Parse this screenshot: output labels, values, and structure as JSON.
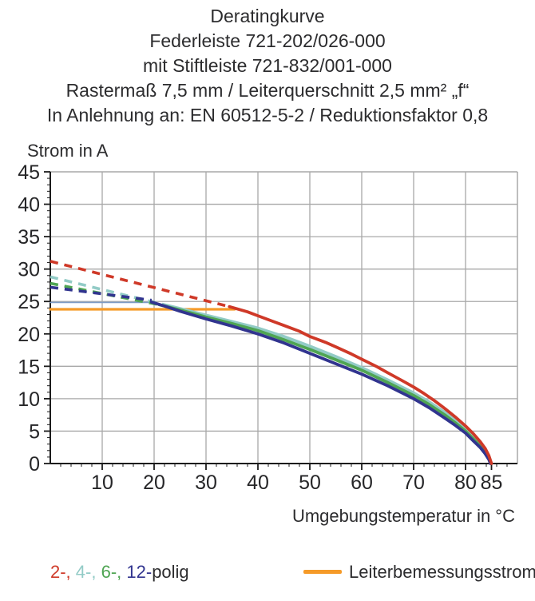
{
  "title_block": {
    "lines": [
      "Deratingkurve",
      "Federleiste 721-202/026-000",
      "mit Stiftleiste 721-832/001-000",
      "Rastermaß 7,5 mm / Leiterquerschnitt 2,5 mm² „f“",
      "In Anlehnung an: EN 60512-5-2 / Reduktionsfaktor 0,8"
    ]
  },
  "chart_data": {
    "type": "line",
    "title": "Deratingkurve",
    "ylabel": "Strom in A",
    "xlabel": "Umgebungstemperatur in °C",
    "xlim": [
      0,
      90
    ],
    "ylim": [
      0,
      45
    ],
    "xticks": [
      10,
      20,
      30,
      40,
      50,
      60,
      70,
      80,
      85
    ],
    "x_gridlines": [
      10,
      20,
      30,
      40,
      50,
      60,
      70,
      80
    ],
    "yticks": [
      0,
      5,
      10,
      15,
      20,
      25,
      30,
      35,
      40,
      45
    ],
    "grid": true,
    "legend_position": "bottom",
    "series": [
      {
        "name": "12-polig cap line",
        "color": "#7e9cc6",
        "style": "solid",
        "width": 1.6,
        "points": [
          [
            0,
            24.85
          ],
          [
            19.5,
            24.85
          ]
        ]
      },
      {
        "name": "Leiterbemessungsstrom",
        "color": "#f59a28",
        "style": "solid",
        "width": 3.2,
        "points": [
          [
            0,
            23.8
          ],
          [
            35.5,
            23.8
          ]
        ]
      },
      {
        "name": "4-polig (dashed)",
        "color": "#92cbc6",
        "style": "dashed",
        "width": 3.6,
        "points": [
          [
            0,
            28.8
          ],
          [
            22.5,
            24.4
          ]
        ]
      },
      {
        "name": "4-polig",
        "color": "#92cbc6",
        "style": "solid",
        "width": 3.8,
        "points": [
          [
            22.5,
            24.4
          ],
          [
            25,
            23.9
          ],
          [
            30,
            22.9
          ],
          [
            35,
            21.9
          ],
          [
            40,
            20.9
          ],
          [
            45,
            19.6
          ],
          [
            50,
            18.1
          ],
          [
            55,
            16.5
          ],
          [
            60,
            14.8
          ],
          [
            65,
            12.9
          ],
          [
            70,
            10.9
          ],
          [
            73,
            9.5
          ],
          [
            76,
            7.9
          ],
          [
            78,
            6.7
          ],
          [
            80,
            5.3
          ],
          [
            81.5,
            4.1
          ],
          [
            82.8,
            3.0
          ],
          [
            83.8,
            2.0
          ],
          [
            84.5,
            1.0
          ],
          [
            84.9,
            0
          ]
        ]
      },
      {
        "name": "6-polig (dashed)",
        "color": "#4fa553",
        "style": "dashed",
        "width": 3.6,
        "points": [
          [
            0,
            27.8
          ],
          [
            21,
            24.5
          ]
        ]
      },
      {
        "name": "6-polig",
        "color": "#4fa553",
        "style": "solid",
        "width": 3.8,
        "points": [
          [
            21,
            24.5
          ],
          [
            25,
            23.7
          ],
          [
            30,
            22.6
          ],
          [
            35,
            21.6
          ],
          [
            40,
            20.5
          ],
          [
            45,
            19.1
          ],
          [
            50,
            17.6
          ],
          [
            55,
            16.0
          ],
          [
            60,
            14.4
          ],
          [
            65,
            12.5
          ],
          [
            70,
            10.5
          ],
          [
            73,
            9.1
          ],
          [
            76,
            7.5
          ],
          [
            78,
            6.3
          ],
          [
            80,
            5.0
          ],
          [
            81.5,
            3.8
          ],
          [
            82.8,
            2.7
          ],
          [
            83.8,
            1.7
          ],
          [
            84.5,
            0.8
          ],
          [
            84.9,
            0
          ]
        ]
      },
      {
        "name": "12-polig (dashed)",
        "color": "#31348f",
        "style": "dashed",
        "width": 3.6,
        "points": [
          [
            0,
            27.2
          ],
          [
            19.5,
            25.2
          ]
        ]
      },
      {
        "name": "12-polig",
        "color": "#31348f",
        "style": "solid",
        "width": 3.8,
        "points": [
          [
            19.5,
            24.9
          ],
          [
            22,
            24.3
          ],
          [
            25,
            23.5
          ],
          [
            30,
            22.3
          ],
          [
            35,
            21.2
          ],
          [
            40,
            20.0
          ],
          [
            45,
            18.6
          ],
          [
            50,
            17.0
          ],
          [
            55,
            15.4
          ],
          [
            60,
            13.8
          ],
          [
            65,
            12.0
          ],
          [
            70,
            10.0
          ],
          [
            73,
            8.6
          ],
          [
            76,
            7.0
          ],
          [
            78,
            5.9
          ],
          [
            80,
            4.7
          ],
          [
            81.5,
            3.5
          ],
          [
            82.8,
            2.5
          ],
          [
            83.8,
            1.5
          ],
          [
            84.5,
            0.6
          ],
          [
            84.8,
            0
          ]
        ]
      },
      {
        "name": "2-polig (dashed)",
        "color": "#cf3928",
        "style": "dashed",
        "width": 3.6,
        "points": [
          [
            0,
            31.2
          ],
          [
            34.5,
            24.2
          ]
        ]
      },
      {
        "name": "2-polig",
        "color": "#cf3928",
        "style": "solid",
        "width": 3.8,
        "points": [
          [
            34.5,
            24.2
          ],
          [
            38,
            23.4
          ],
          [
            40,
            22.8
          ],
          [
            43,
            21.9
          ],
          [
            45,
            21.3
          ],
          [
            48,
            20.4
          ],
          [
            50,
            19.6
          ],
          [
            53,
            18.7
          ],
          [
            55,
            18.0
          ],
          [
            58,
            16.9
          ],
          [
            60,
            16.1
          ],
          [
            63,
            14.9
          ],
          [
            65,
            14.0
          ],
          [
            68,
            12.7
          ],
          [
            70,
            11.8
          ],
          [
            72,
            10.8
          ],
          [
            74,
            9.7
          ],
          [
            76,
            8.5
          ],
          [
            78,
            7.2
          ],
          [
            80,
            5.8
          ],
          [
            81.5,
            4.6
          ],
          [
            82.8,
            3.4
          ],
          [
            83.8,
            2.3
          ],
          [
            84.5,
            1.2
          ],
          [
            85,
            0
          ]
        ]
      }
    ]
  },
  "legend": {
    "poles": [
      {
        "text": "2-, ",
        "color": "#cf3928"
      },
      {
        "text": "4-, ",
        "color": "#92cbc6"
      },
      {
        "text": "6-, ",
        "color": "#4fa553"
      },
      {
        "text": "12-",
        "color": "#31348f"
      },
      {
        "text": "polig",
        "color": "#2c2c2e"
      }
    ],
    "rated": {
      "label": "Leiterbemessungsstrom",
      "color": "#f59a28"
    }
  },
  "colors": {
    "grid": "#a8a8a8",
    "axis": "#1c1c1c",
    "text": "#2c2c2e",
    "background": "#ffffff"
  }
}
